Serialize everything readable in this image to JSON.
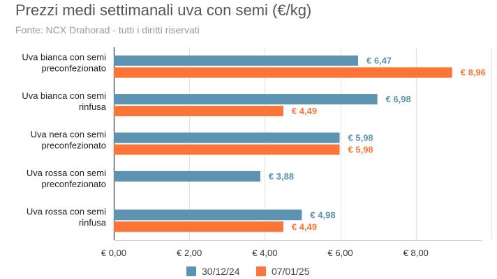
{
  "title": "Prezzi medi settimanali uva con semi (€/kg)",
  "subtitle": "Fonte: NCX Drahorad - tutti i diritti riservati",
  "colors": {
    "series1": "#5b93b1",
    "series2": "#fb7539"
  },
  "chart_data": {
    "type": "bar",
    "orientation": "horizontal",
    "title": "Prezzi medi settimanali uva con semi (€/kg)",
    "subtitle": "Fonte: NCX Drahorad - tutti i diritti riservati",
    "categories": [
      [
        "Uva bianca con semi",
        "preconfezionato"
      ],
      [
        "Uva bianca con semi",
        "rinfusa"
      ],
      [
        "Uva nera con semi",
        "preconfezionato"
      ],
      [
        "Uva rossa con semi",
        "preconfezionato"
      ],
      [
        "Uva rossa con semi",
        "rinfusa"
      ]
    ],
    "series": [
      {
        "name": "30/12/24",
        "values": [
          6.47,
          6.98,
          5.98,
          3.88,
          4.98
        ],
        "labels": [
          "€ 6,47",
          "€ 6,98",
          "€ 5,98",
          "€ 3,88",
          "€ 4,98"
        ]
      },
      {
        "name": "07/01/25",
        "values": [
          8.96,
          4.49,
          5.98,
          null,
          4.49
        ],
        "labels": [
          "€ 8,96",
          "€ 4,49",
          "€ 5,98",
          "",
          "€ 4,49"
        ]
      }
    ],
    "xlim": [
      0,
      10
    ],
    "xticks": [
      0,
      2,
      4,
      6,
      8
    ],
    "xtick_labels": [
      "€ 0,00",
      "€ 2,00",
      "€ 4,00",
      "€ 6,00",
      "€ 8,00"
    ],
    "grid": true,
    "legend": "bottom"
  }
}
